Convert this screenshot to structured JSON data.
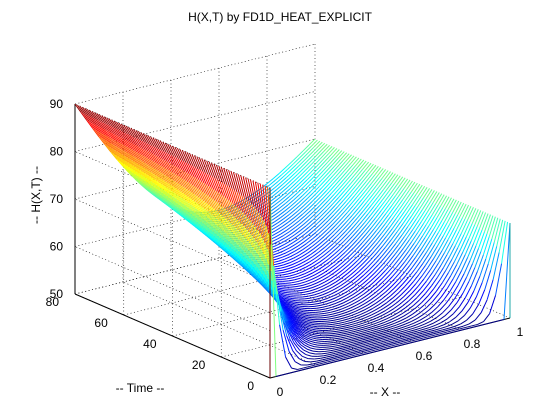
{
  "chart_data": {
    "type": "surface",
    "title": "H(X,T) by FD1D_HEAT_EXPLICIT",
    "xlabel": "-- X --",
    "ylabel": "-- Time --",
    "zlabel": "-- H(X,T) --",
    "x_ticks": [
      "0",
      "0.2",
      "0.4",
      "0.6",
      "0.8",
      "1"
    ],
    "t_ticks": [
      "0",
      "20",
      "40",
      "60",
      "80"
    ],
    "z_ticks": [
      "50",
      "60",
      "70",
      "80",
      "90"
    ],
    "xlim": [
      0,
      1
    ],
    "tlim": [
      0,
      80
    ],
    "zlim": [
      50,
      90
    ],
    "grid": true,
    "colormap": "jet",
    "boundary": {
      "h_x0": 90,
      "h_x1": 70
    },
    "initial_temperature": 50,
    "steady_state": [
      {
        "x": 0.0,
        "h": 90
      },
      {
        "x": 0.2,
        "h": 86
      },
      {
        "x": 0.4,
        "h": 82
      },
      {
        "x": 0.6,
        "h": 78
      },
      {
        "x": 0.8,
        "h": 74
      },
      {
        "x": 1.0,
        "h": 70
      }
    ]
  }
}
